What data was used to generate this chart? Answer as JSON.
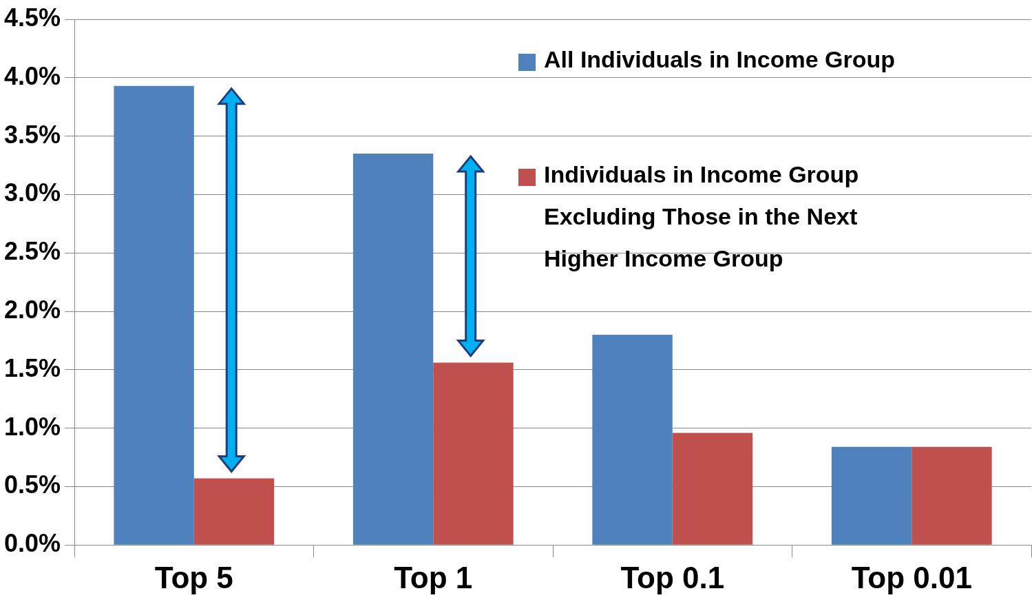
{
  "chart_data": {
    "type": "bar",
    "categories": [
      "Top 5",
      "Top 1",
      "Top 0.1",
      "Top 0.01"
    ],
    "series": [
      {
        "name": "All Individuals in Income Group",
        "color": "#4f81bd",
        "values": [
          3.93,
          3.35,
          1.8,
          0.84
        ]
      },
      {
        "name": "Individuals in Income Group Excluding Those in the Next Higher Income Group",
        "color": "#c0504d",
        "values": [
          0.57,
          1.56,
          0.96,
          0.84
        ]
      }
    ],
    "ylim": [
      0,
      4.5
    ],
    "yticks": [
      {
        "value": 0,
        "label": "0.0%"
      },
      {
        "value": 0.5,
        "label": "0.5%"
      },
      {
        "value": 1,
        "label": "1.0%"
      },
      {
        "value": 1.5,
        "label": "1.5%"
      },
      {
        "value": 2,
        "label": "2.0%"
      },
      {
        "value": 2.5,
        "label": "2.5%"
      },
      {
        "value": 3,
        "label": "3.0%"
      },
      {
        "value": 3.5,
        "label": "3.5%"
      },
      {
        "value": 4,
        "label": "4.0%"
      },
      {
        "value": 4.5,
        "label": "4.5%"
      }
    ],
    "grid": "y",
    "legend": "top right"
  }
}
